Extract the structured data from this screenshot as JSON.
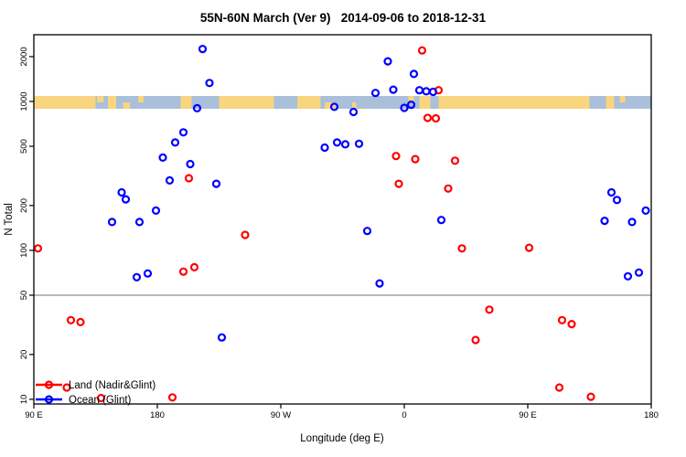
{
  "chart_data": {
    "type": "scatter",
    "title": "55N-60N March (Ver 9)   2014-09-06 to 2018-12-31",
    "xlabel": "Longitude (deg E)",
    "ylabel": "N Total",
    "x_scale": "linear",
    "y_scale": "log",
    "xlim": [
      90,
      540
    ],
    "ylim": [
      9.3,
      2805
    ],
    "x_ticks": [
      {
        "value": 90,
        "label": "90 E"
      },
      {
        "value": 180,
        "label": "180"
      },
      {
        "value": 270,
        "label": "90 W"
      },
      {
        "value": 360,
        "label": "0"
      },
      {
        "value": 450,
        "label": "90 E"
      },
      {
        "value": 540,
        "label": "180"
      }
    ],
    "y_ticks": [
      {
        "value": 10,
        "label": "10"
      },
      {
        "value": 20,
        "label": "20"
      },
      {
        "value": 50,
        "label": "50"
      },
      {
        "value": 100,
        "label": "100"
      },
      {
        "value": 200,
        "label": "200"
      },
      {
        "value": 500,
        "label": "500"
      },
      {
        "value": 1000,
        "label": "1000"
      },
      {
        "value": 2000,
        "label": "2000"
      }
    ],
    "gridline_y": 50,
    "gridline_color": "#8f8f8f",
    "map_band": {
      "description": "land-ocean map strip along 55N-60N drawn across the plot near N=1000",
      "y_range": [
        892,
        1088
      ],
      "land_color": "#F8D57E",
      "ocean_color": "#A9BFDA",
      "segments": [
        [
          90,
          135,
          "land"
        ],
        [
          135,
          144,
          "ocean"
        ],
        [
          144,
          150,
          "land"
        ],
        [
          150,
          197,
          "ocean"
        ],
        [
          197,
          205,
          "land"
        ],
        [
          205,
          225,
          "ocean"
        ],
        [
          225,
          265,
          "land"
        ],
        [
          265,
          282,
          "ocean"
        ],
        [
          282,
          299,
          "land"
        ],
        [
          299,
          371,
          "ocean"
        ],
        [
          371,
          379,
          "land"
        ],
        [
          379,
          385,
          "ocean"
        ],
        [
          385,
          495,
          "land"
        ],
        [
          495,
          507,
          "ocean"
        ],
        [
          507,
          513,
          "land"
        ],
        [
          513,
          540,
          "ocean"
        ]
      ],
      "patches": [
        {
          "from": 136,
          "to": 141,
          "type": "land",
          "part": "top"
        },
        {
          "from": 155,
          "to": 160,
          "type": "land",
          "part": "bottom"
        },
        {
          "from": 166,
          "to": 170,
          "type": "land",
          "part": "top"
        },
        {
          "from": 268,
          "to": 278,
          "type": "ocean",
          "part": "top"
        },
        {
          "from": 302,
          "to": 310,
          "type": "land",
          "part": "bottom"
        },
        {
          "from": 322,
          "to": 325,
          "type": "land",
          "part": "bottom"
        },
        {
          "from": 363,
          "to": 367,
          "type": "land",
          "part": "top"
        },
        {
          "from": 499,
          "to": 505,
          "type": "ocean",
          "part": "top"
        },
        {
          "from": 517,
          "to": 521,
          "type": "land",
          "part": "top"
        }
      ]
    },
    "series": [
      {
        "name": "Land (Nadir&Glint)",
        "color": "#FF0000",
        "points": [
          [
            93,
            103
          ],
          [
            114,
            12
          ],
          [
            117,
            34
          ],
          [
            124,
            33
          ],
          [
            139,
            10.2
          ],
          [
            191,
            10.3
          ],
          [
            199,
            72
          ],
          [
            203,
            305
          ],
          [
            207,
            77
          ],
          [
            244,
            127
          ],
          [
            354,
            430
          ],
          [
            356,
            280
          ],
          [
            368,
            410
          ],
          [
            373,
            2200
          ],
          [
            377,
            775
          ],
          [
            383,
            770
          ],
          [
            385,
            1190
          ],
          [
            392,
            260
          ],
          [
            397,
            400
          ],
          [
            402,
            103
          ],
          [
            412,
            25
          ],
          [
            422,
            40
          ],
          [
            451,
            104
          ],
          [
            473,
            12
          ],
          [
            475,
            34
          ],
          [
            482,
            32
          ],
          [
            496,
            10.4
          ]
        ]
      },
      {
        "name": "Ocean (Glint)",
        "color": "#0000FF",
        "points": [
          [
            147,
            155
          ],
          [
            154,
            245
          ],
          [
            157,
            220
          ],
          [
            165,
            66
          ],
          [
            167,
            155
          ],
          [
            173,
            70
          ],
          [
            179,
            185
          ],
          [
            184,
            420
          ],
          [
            189,
            295
          ],
          [
            193,
            530
          ],
          [
            199,
            620
          ],
          [
            204,
            380
          ],
          [
            209,
            900
          ],
          [
            213,
            2250
          ],
          [
            218,
            1330
          ],
          [
            223,
            280
          ],
          [
            227,
            26
          ],
          [
            302,
            490
          ],
          [
            309,
            920
          ],
          [
            311,
            530
          ],
          [
            317,
            515
          ],
          [
            323,
            850
          ],
          [
            327,
            520
          ],
          [
            333,
            135
          ],
          [
            339,
            1140
          ],
          [
            342,
            60
          ],
          [
            348,
            1860
          ],
          [
            352,
            1200
          ],
          [
            360,
            905
          ],
          [
            365,
            950
          ],
          [
            367,
            1530
          ],
          [
            371,
            1190
          ],
          [
            376,
            1170
          ],
          [
            381,
            1160
          ],
          [
            387,
            160
          ],
          [
            506,
            158
          ],
          [
            511,
            245
          ],
          [
            515,
            218
          ],
          [
            523,
            67
          ],
          [
            526,
            155
          ],
          [
            531,
            71
          ],
          [
            536,
            185
          ]
        ]
      }
    ],
    "legend": {
      "position": "bottom-left",
      "entries": [
        {
          "label": "Land (Nadir&Glint)",
          "color": "#FF0000"
        },
        {
          "label": "Ocean (Glint)",
          "color": "#0000FF"
        }
      ]
    }
  }
}
